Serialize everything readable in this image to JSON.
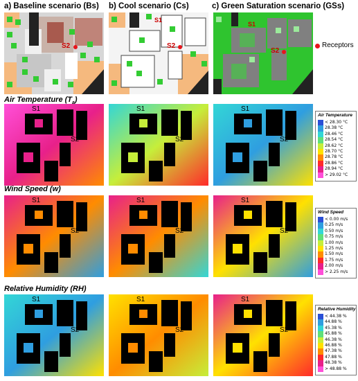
{
  "columns": [
    {
      "label": "a) Baseline scenario (Bs)"
    },
    {
      "label": "b) Cool scenario (Cs)"
    },
    {
      "label": "c) Green Saturation scenario  (GSs)"
    }
  ],
  "receptors_legend": {
    "label": "Receptors",
    "color": "#e8141c"
  },
  "receptor_labels": {
    "s1": "S1",
    "s2": "S2"
  },
  "rows": [
    {
      "title": "Air Temperature (T",
      "title_sub": "a",
      "title_end": ")"
    },
    {
      "title": "Wind Speed (w)",
      "title_sub": "",
      "title_end": ""
    },
    {
      "title": "Relative Humidity  (RH)",
      "title_sub": "",
      "title_end": ""
    }
  ],
  "legends": [
    {
      "title": "Air Temperature",
      "colors": [
        "#2a4fd6",
        "#2f9ee0",
        "#33d6d6",
        "#5fe07a",
        "#c6ee3a",
        "#ffe100",
        "#ff8c00",
        "#ff2a2a",
        "#e8208a",
        "#ff4fd8"
      ],
      "items": [
        "< 28.30 °C",
        "28.38 °C",
        "28.46 °C",
        "28.54 °C",
        "28.62 °C",
        "28.70 °C",
        "28.78 °C",
        "28.86 °C",
        "28.94 °C",
        "> 29.02 °C"
      ]
    },
    {
      "title": "Wind Speed",
      "colors": [
        "#2a4fd6",
        "#2f9ee0",
        "#33d6d6",
        "#5fe07a",
        "#c6ee3a",
        "#ffe100",
        "#ff8c00",
        "#ff2a2a",
        "#e8208a",
        "#ff4fd8"
      ],
      "items": [
        "< 0.00 m/s",
        "0.25 m/s",
        "0.50 m/s",
        "0.75 m/s",
        "1.00 m/s",
        "1.25 m/s",
        "1.50 m/s",
        "1.75 m/s",
        "2.00 m/s",
        "> 2.25 m/s"
      ]
    },
    {
      "title": "Relative Humidity",
      "colors": [
        "#2a4fd6",
        "#2f9ee0",
        "#33d6d6",
        "#5fe07a",
        "#c6ee3a",
        "#ffe100",
        "#ff8c00",
        "#ff2a2a",
        "#e8208a",
        "#ff4fd8"
      ],
      "items": [
        "< 44.38 %",
        "44.88 %",
        "45.38 %",
        "45.88 %",
        "46.38 %",
        "46.88 %",
        "47.38 %",
        "47.88 %",
        "48.38 %",
        "> 48.88 %"
      ]
    }
  ]
}
